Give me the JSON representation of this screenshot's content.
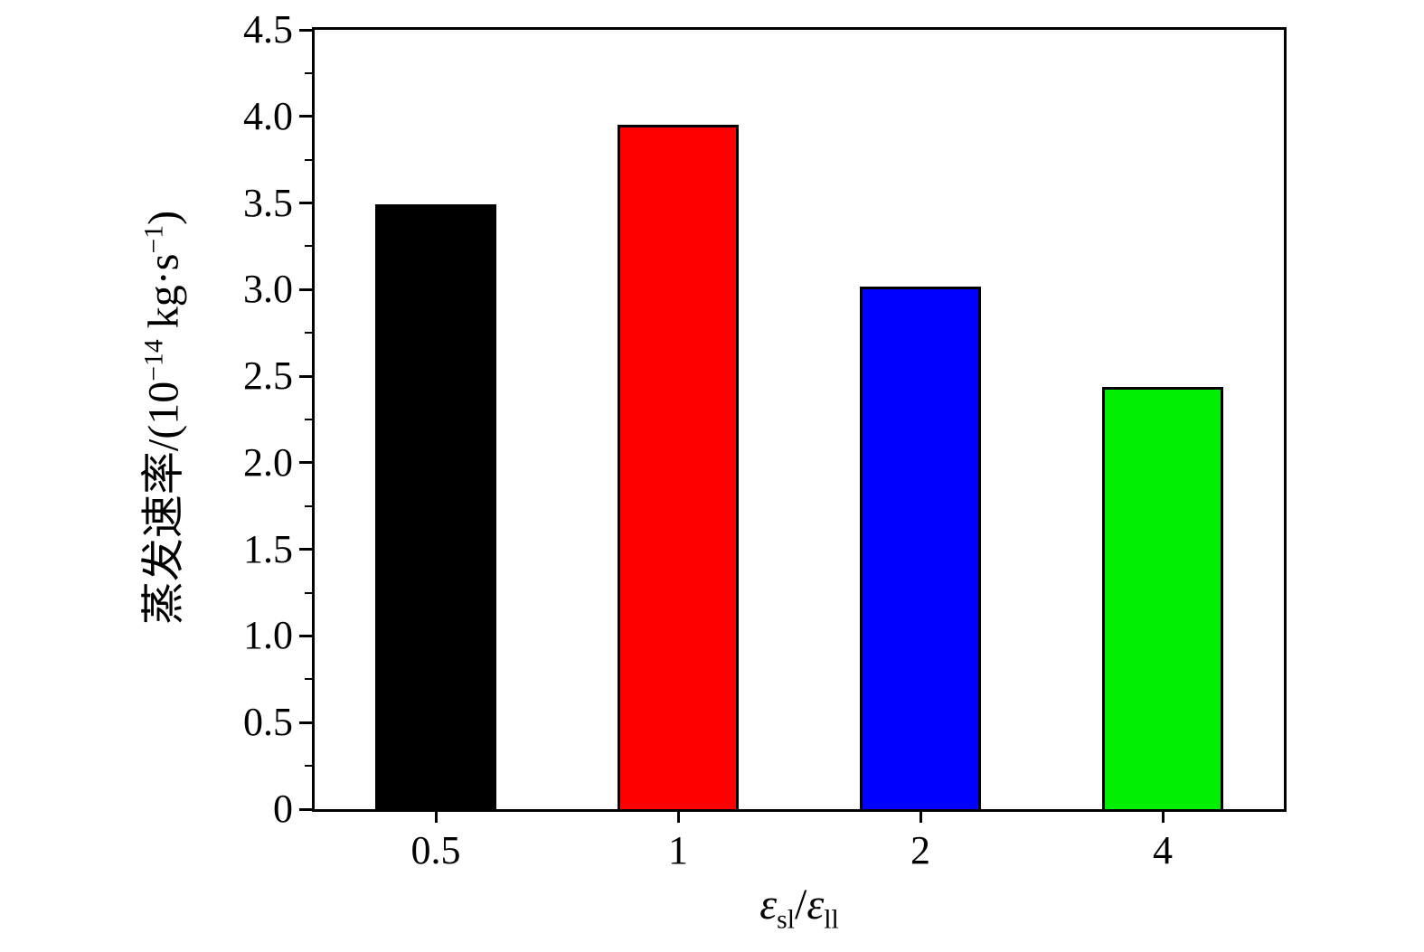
{
  "chart_data": {
    "type": "bar",
    "categories": [
      "0.5",
      "1",
      "2",
      "4"
    ],
    "values": [
      3.49,
      3.95,
      3.02,
      2.44
    ],
    "bar_colors": [
      "#000000",
      "#ff0000",
      "#0000ff",
      "#00ee00"
    ],
    "bar_width_fraction": 0.5,
    "title": "",
    "xlabel": "εsl/εll",
    "ylabel": "蒸发速率/(10−14 kg·s−1)",
    "xlabel_parts": [
      {
        "text": "ε",
        "italic": true
      },
      {
        "text": "sl",
        "sub": true
      },
      {
        "text": "/"
      },
      {
        "text": "ε",
        "italic": true
      },
      {
        "text": "ll",
        "sub": true
      }
    ],
    "ylabel_parts": [
      {
        "text": "蒸发速率/(10"
      },
      {
        "text": "−14",
        "sup": true
      },
      {
        "text": " kg·s",
        "prefix_space": true
      },
      {
        "text": "−1",
        "sup": true
      },
      {
        "text": ")"
      }
    ],
    "ylim": [
      0,
      4.5
    ],
    "ytick_labels": [
      "0",
      "0.5",
      "1.0",
      "1.5",
      "2.0",
      "2.5",
      "3.0",
      "3.5",
      "4.0",
      "4.5"
    ],
    "minor_yticks": true,
    "grid": false,
    "legend": "none",
    "axis_color": "#000000",
    "background_color": "#ffffff"
  }
}
